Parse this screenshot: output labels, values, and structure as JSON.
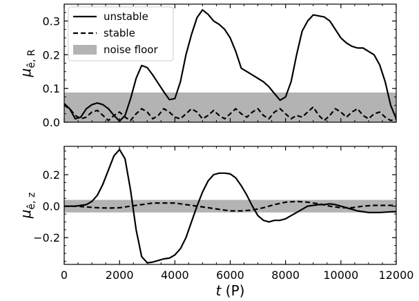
{
  "chart_data": [
    {
      "type": "line",
      "xlabel_var": "t",
      "xlabel_unit": "(P)",
      "ylabel_main": "μ",
      "ylabel_sub": "ê, R",
      "xlim": [
        0,
        12000
      ],
      "ylim": [
        0,
        0.35
      ],
      "xticks": [
        0,
        2000,
        4000,
        6000,
        8000,
        10000,
        12000
      ],
      "yticks": [
        0.0,
        0.1,
        0.2,
        0.3
      ],
      "ytick_labels": [
        "0.0",
        "0.1",
        "0.2",
        "0.3"
      ],
      "grid": false,
      "legend_position": "top-left",
      "legend": [
        {
          "label": "unstable",
          "style": "solid"
        },
        {
          "label": "stable",
          "style": "dashed"
        },
        {
          "label": "noise floor",
          "style": "band"
        }
      ],
      "noise_band": {
        "low": 0.0,
        "high": 0.088,
        "color": "#b3b3b3"
      },
      "series": [
        {
          "name": "unstable",
          "style": "solid",
          "x": [
            0,
            200,
            400,
            600,
            800,
            1000,
            1200,
            1400,
            1600,
            1800,
            2000,
            2200,
            2400,
            2600,
            2800,
            3000,
            3200,
            3400,
            3600,
            3800,
            4000,
            4200,
            4400,
            4600,
            4800,
            5000,
            5200,
            5400,
            5600,
            5800,
            6000,
            6200,
            6400,
            6600,
            6800,
            7000,
            7200,
            7400,
            7600,
            7800,
            8000,
            8200,
            8400,
            8600,
            8800,
            9000,
            9200,
            9400,
            9600,
            9800,
            10000,
            10200,
            10400,
            10600,
            10800,
            11000,
            11200,
            11400,
            11600,
            11800,
            12000
          ],
          "y": [
            0.055,
            0.04,
            0.01,
            0.015,
            0.04,
            0.052,
            0.057,
            0.052,
            0.04,
            0.02,
            0.003,
            0.02,
            0.07,
            0.13,
            0.168,
            0.162,
            0.14,
            0.115,
            0.09,
            0.067,
            0.07,
            0.12,
            0.2,
            0.26,
            0.31,
            0.333,
            0.32,
            0.3,
            0.29,
            0.275,
            0.25,
            0.21,
            0.16,
            0.15,
            0.14,
            0.13,
            0.12,
            0.105,
            0.085,
            0.065,
            0.075,
            0.12,
            0.2,
            0.27,
            0.3,
            0.318,
            0.315,
            0.312,
            0.3,
            0.275,
            0.25,
            0.235,
            0.225,
            0.22,
            0.22,
            0.21,
            0.2,
            0.17,
            0.12,
            0.05,
            0.01
          ]
        },
        {
          "name": "stable",
          "style": "dashed",
          "x": [
            0,
            200,
            400,
            600,
            800,
            1000,
            1200,
            1400,
            1600,
            1800,
            2000,
            2200,
            2400,
            2600,
            2800,
            3000,
            3200,
            3400,
            3600,
            3800,
            4000,
            4200,
            4400,
            4600,
            4800,
            5000,
            5200,
            5400,
            5600,
            5800,
            6000,
            6200,
            6400,
            6600,
            6800,
            7000,
            7200,
            7400,
            7600,
            7800,
            8000,
            8200,
            8400,
            8600,
            8800,
            9000,
            9200,
            9400,
            9600,
            9800,
            10000,
            10200,
            10400,
            10600,
            10800,
            11000,
            11200,
            11400,
            11600,
            11800,
            12000
          ],
          "y": [
            0.05,
            0.04,
            0.02,
            0.01,
            0.015,
            0.03,
            0.035,
            0.02,
            0.005,
            0.02,
            0.03,
            0.015,
            0.005,
            0.025,
            0.04,
            0.03,
            0.01,
            0.02,
            0.04,
            0.03,
            0.015,
            0.01,
            0.025,
            0.04,
            0.03,
            0.01,
            0.02,
            0.035,
            0.02,
            0.01,
            0.025,
            0.04,
            0.025,
            0.015,
            0.03,
            0.04,
            0.02,
            0.01,
            0.03,
            0.04,
            0.025,
            0.01,
            0.02,
            0.015,
            0.03,
            0.045,
            0.02,
            0.005,
            0.02,
            0.04,
            0.03,
            0.015,
            0.03,
            0.04,
            0.02,
            0.01,
            0.025,
            0.03,
            0.015,
            0.005,
            0.01
          ]
        }
      ]
    },
    {
      "type": "line",
      "xlabel_var": "t",
      "xlabel_unit": "(P)",
      "ylabel_main": "μ",
      "ylabel_sub": "ê, z",
      "xlim": [
        0,
        12000
      ],
      "ylim": [
        -0.37,
        0.38
      ],
      "xticks": [
        0,
        2000,
        4000,
        6000,
        8000,
        10000,
        12000
      ],
      "yticks": [
        -0.2,
        0.0,
        0.2
      ],
      "ytick_labels": [
        "−0.2",
        "0.0",
        "0.2"
      ],
      "grid": false,
      "noise_band": {
        "low": -0.04,
        "high": 0.04,
        "color": "#b3b3b3"
      },
      "series": [
        {
          "name": "unstable",
          "style": "solid",
          "x": [
            0,
            200,
            400,
            600,
            800,
            1000,
            1200,
            1400,
            1600,
            1800,
            2000,
            2200,
            2400,
            2600,
            2800,
            3000,
            3200,
            3400,
            3600,
            3800,
            4000,
            4200,
            4400,
            4600,
            4800,
            5000,
            5200,
            5400,
            5600,
            5800,
            6000,
            6200,
            6400,
            6600,
            6800,
            7000,
            7200,
            7400,
            7600,
            7800,
            8000,
            8200,
            8400,
            8600,
            8800,
            9000,
            9200,
            9400,
            9600,
            9800,
            10000,
            10200,
            10400,
            10600,
            10800,
            11000,
            11200,
            11400,
            11600,
            11800,
            12000
          ],
          "y": [
            0.0,
            0.0,
            0.0,
            0.005,
            0.01,
            0.03,
            0.07,
            0.14,
            0.23,
            0.32,
            0.36,
            0.3,
            0.1,
            -0.15,
            -0.32,
            -0.36,
            -0.355,
            -0.345,
            -0.335,
            -0.33,
            -0.31,
            -0.27,
            -0.2,
            -0.1,
            0.0,
            0.09,
            0.16,
            0.2,
            0.21,
            0.21,
            0.205,
            0.18,
            0.13,
            0.07,
            0.0,
            -0.06,
            -0.09,
            -0.1,
            -0.09,
            -0.09,
            -0.08,
            -0.06,
            -0.04,
            -0.02,
            0.0,
            0.005,
            0.01,
            0.01,
            0.015,
            0.01,
            0.0,
            -0.01,
            -0.02,
            -0.03,
            -0.035,
            -0.04,
            -0.04,
            -0.04,
            -0.038,
            -0.036,
            -0.035
          ]
        },
        {
          "name": "stable",
          "style": "dashed",
          "x": [
            0,
            400,
            800,
            1200,
            1600,
            2000,
            2400,
            2800,
            3200,
            3600,
            4000,
            4400,
            4800,
            5200,
            5600,
            6000,
            6400,
            6800,
            7200,
            7600,
            8000,
            8400,
            8800,
            9200,
            9600,
            10000,
            10400,
            10800,
            11200,
            11600,
            12000
          ],
          "y": [
            0.0,
            0.0,
            -0.005,
            -0.01,
            -0.012,
            -0.01,
            0.0,
            0.01,
            0.02,
            0.02,
            0.02,
            0.01,
            0.0,
            -0.01,
            -0.02,
            -0.03,
            -0.03,
            -0.025,
            -0.01,
            0.01,
            0.025,
            0.03,
            0.025,
            0.015,
            0.0,
            -0.01,
            -0.01,
            0.0,
            0.005,
            0.005,
            0.005
          ]
        }
      ]
    }
  ]
}
